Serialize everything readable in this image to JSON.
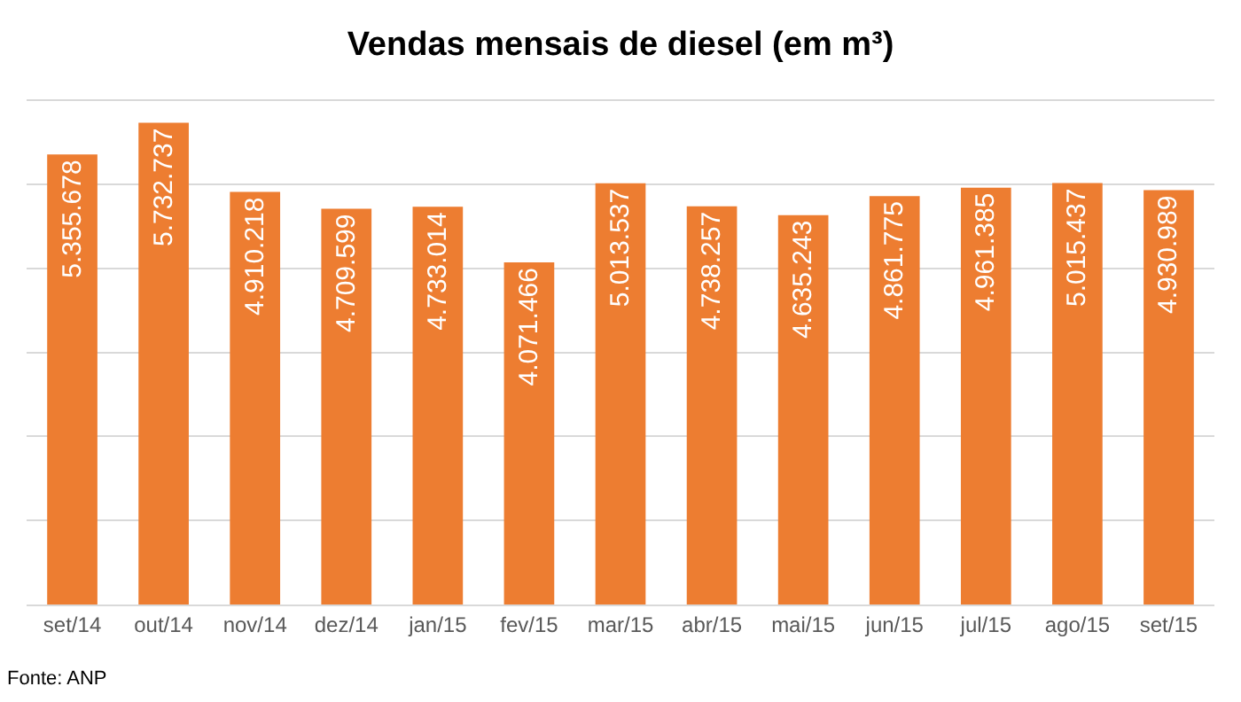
{
  "chart_data": {
    "type": "bar",
    "title": "Vendas mensais de diesel (em m³)",
    "categories": [
      "set/14",
      "out/14",
      "nov/14",
      "dez/14",
      "jan/15",
      "fev/15",
      "mar/15",
      "abr/15",
      "mai/15",
      "jun/15",
      "jul/15",
      "ago/15",
      "set/15"
    ],
    "values": [
      5355678,
      5732737,
      4910218,
      4709599,
      4733014,
      4071466,
      5013537,
      4738257,
      4635243,
      4861775,
      4961385,
      5015437,
      4930989
    ],
    "value_labels": [
      "5.355.678",
      "5.732.737",
      "4.910.218",
      "4.709.599",
      "4.733.014",
      "4.071.466",
      "5.013.537",
      "4.738.257",
      "4.635.243",
      "4.861.775",
      "4.961.385",
      "5.015.437",
      "4.930.989"
    ],
    "color": "#ed7d31",
    "tick_labels": "x",
    "grid": "y",
    "annotations": [
      "Fonte: ANP"
    ]
  }
}
